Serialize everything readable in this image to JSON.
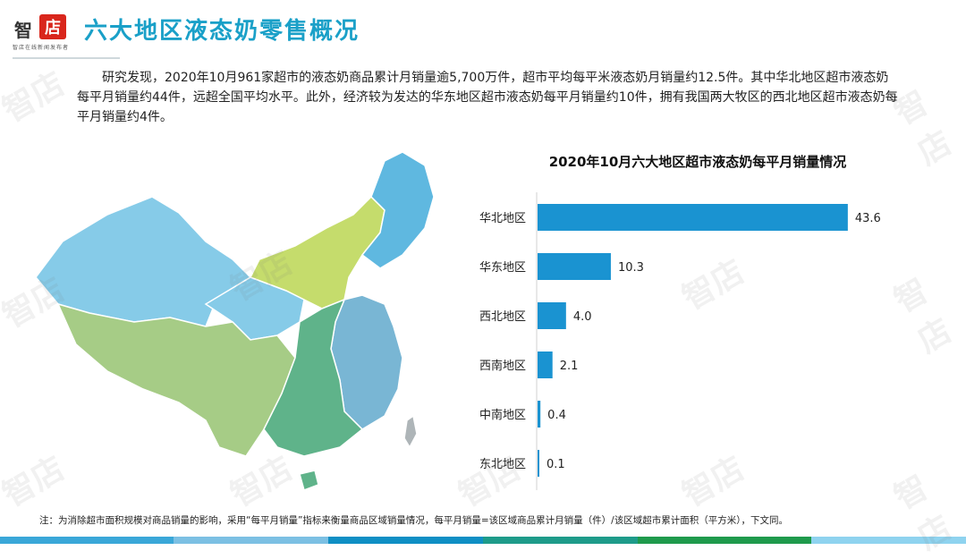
{
  "brand": {
    "logo_char_1": "智",
    "logo_char_2": "店",
    "logo_tagline": "智店在线新闻发布者",
    "watermark": "智店"
  },
  "page": {
    "title": "六大地区液态奶零售概况",
    "paragraph": "研究发现，2020年10月961家超市的液态奶商品累计月销量逾5,700万件，超市平均每平米液态奶月销量约12.5件。其中华北地区超市液态奶每平月销量约44件，远超全国平均水平。此外，经济较为发达的华东地区超市液态奶每平月销量约10件，拥有我国两大牧区的西北地区超市液态奶每平月销量约4件。",
    "footnote": "注：为消除超市面积规模对商品销量的影响，采用“每平月销量”指标来衡量商品区域销量情况，每平月销量=该区域商品累计月销量（件）/该区域超市累计面积（平方米），下文同。"
  },
  "colors": {
    "bar": "#1a93d1",
    "title": "#1aa0c8",
    "map_north": "#c5dc6c",
    "map_northeast": "#5fb8e0",
    "map_northwest": "#86cbe8",
    "map_southwest": "#a6cc86",
    "map_central_south": "#5fb38a",
    "map_east": "#79b6d4",
    "map_taiwan": "#aeb5b8"
  },
  "chart_data": {
    "type": "bar",
    "orientation": "horizontal",
    "title": "2020年10月六大地区超市液态奶每平月销量情况",
    "categories": [
      "华北地区",
      "华东地区",
      "西北地区",
      "西南地区",
      "中南地区",
      "东北地区"
    ],
    "values": [
      43.6,
      10.3,
      4.0,
      2.1,
      0.4,
      0.1
    ],
    "value_labels": [
      "43.6",
      "10.3",
      "4.0",
      "2.1",
      "0.4",
      "0.1"
    ],
    "xlim": [
      0,
      45
    ],
    "grid": false,
    "legend": "none"
  }
}
